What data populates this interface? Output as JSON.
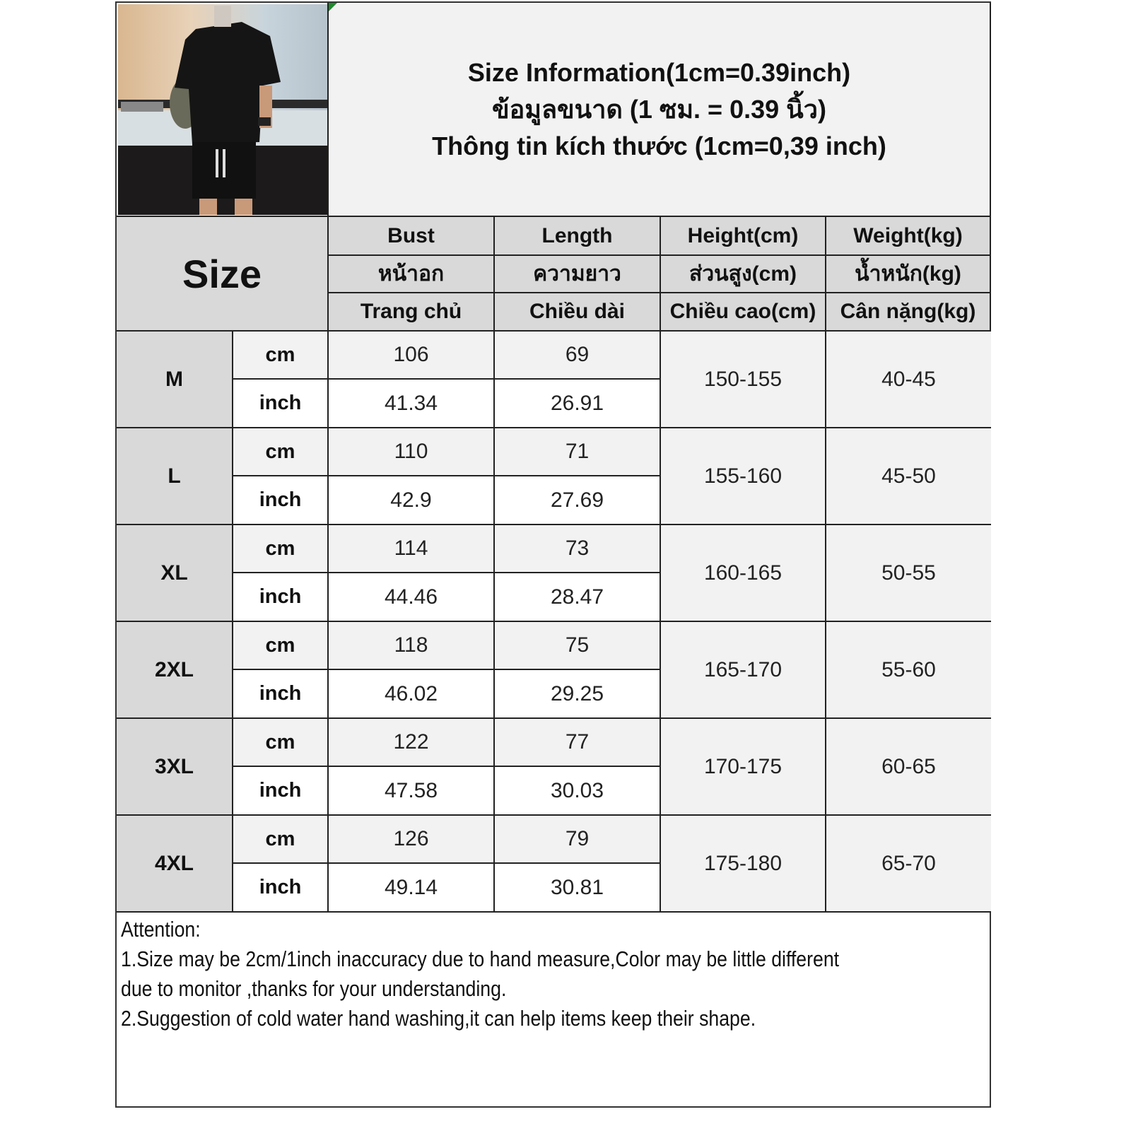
{
  "title": {
    "line_en": "Size Information(1cm=0.39inch)",
    "line_th": "ข้อมูลขนาด (1 ซม. = 0.39 นิ้ว)",
    "line_vi": "Thông tin kích thước (1cm=0,39 inch)"
  },
  "product_photo": "man in black oversized t-shirt and black drawstring shorts",
  "header": {
    "size_label": "Size",
    "columns": [
      {
        "en": "Bust",
        "th": "หน้าอก",
        "vi": "Trang chủ"
      },
      {
        "en": "Length",
        "th": "ความยาว",
        "vi": "Chiều dài"
      },
      {
        "en": "Height(cm)",
        "th": "ส่วนสูง(cm)",
        "vi": "Chiều cao(cm)"
      },
      {
        "en": "Weight(kg)",
        "th": "น้ำหนัก(kg)",
        "vi": "Cân nặng(kg)"
      }
    ]
  },
  "units": {
    "cm": "cm",
    "inch": "inch"
  },
  "rows": [
    {
      "size": "M",
      "bust_cm": "106",
      "length_cm": "69",
      "bust_in": "41.34",
      "length_in": "26.91",
      "height": "150-155",
      "weight": "40-45"
    },
    {
      "size": "L",
      "bust_cm": "110",
      "length_cm": "71",
      "bust_in": "42.9",
      "length_in": "27.69",
      "height": "155-160",
      "weight": "45-50"
    },
    {
      "size": "XL",
      "bust_cm": "114",
      "length_cm": "73",
      "bust_in": "44.46",
      "length_in": "28.47",
      "height": "160-165",
      "weight": "50-55"
    },
    {
      "size": "2XL",
      "bust_cm": "118",
      "length_cm": "75",
      "bust_in": "46.02",
      "length_in": "29.25",
      "height": "165-170",
      "weight": "55-60"
    },
    {
      "size": "3XL",
      "bust_cm": "122",
      "length_cm": "77",
      "bust_in": "47.58",
      "length_in": "30.03",
      "height": "170-175",
      "weight": "60-65"
    },
    {
      "size": "4XL",
      "bust_cm": "126",
      "length_cm": "79",
      "bust_in": "49.14",
      "length_in": "30.81",
      "height": "175-180",
      "weight": "65-70"
    }
  ],
  "notes": {
    "heading": "Attention:",
    "lines": [
      "1.Size may be 2cm/1inch inaccuracy due to hand measure,Color may be little different",
      "due to monitor ,thanks for your understanding.",
      "2.Suggestion of cold water hand washing,it can help items keep their shape."
    ]
  },
  "colors": {
    "header_bg": "#d9d9d9",
    "light_bg": "#f2f2f2",
    "border": "#222222",
    "corner_mark": "#1d8a2a"
  }
}
